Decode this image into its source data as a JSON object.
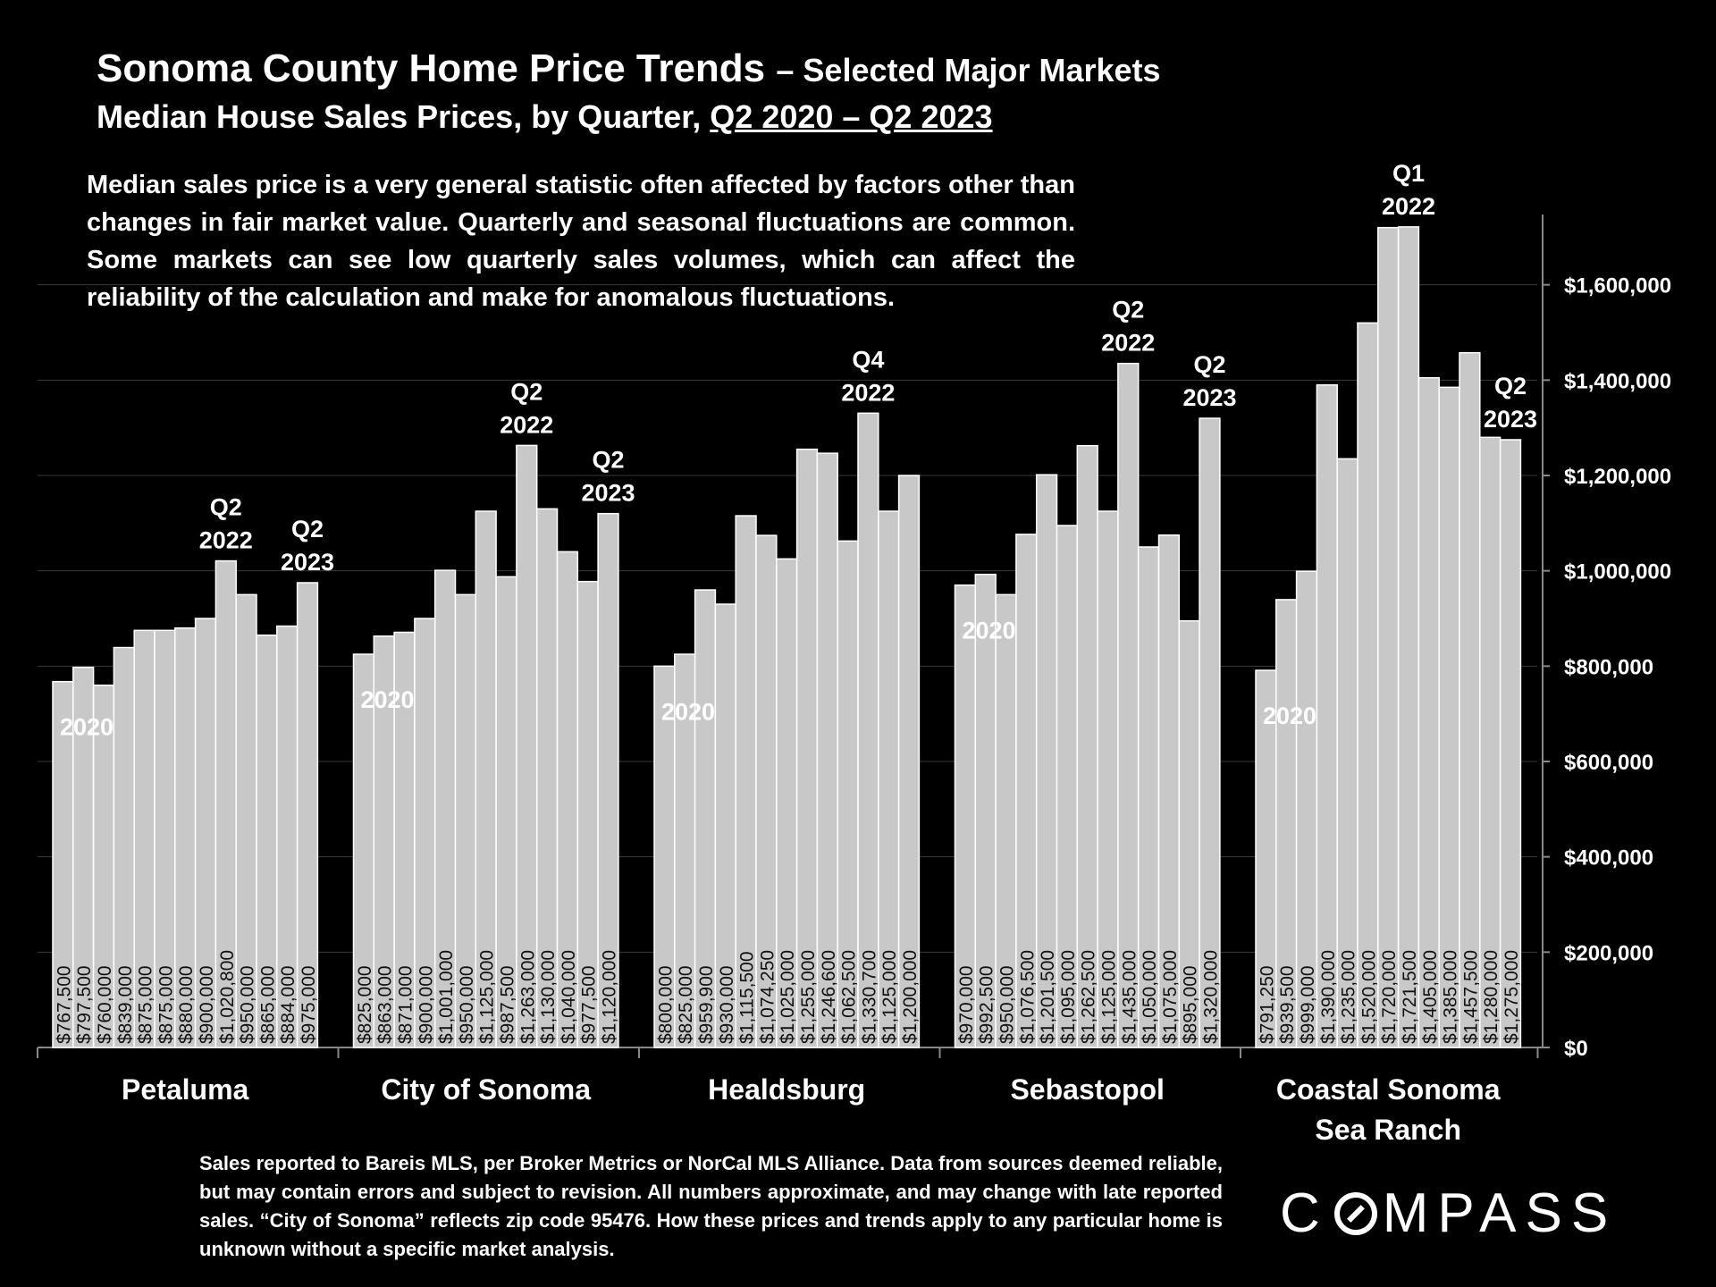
{
  "header": {
    "title_main": "Sonoma County Home Price Trends",
    "title_suffix": "– Selected Major Markets",
    "subtitle_prefix": "Median House Sales Prices, by Quarter, ",
    "subtitle_period": "Q2 2020 – Q2 2023"
  },
  "note": "Median sales price is a very general statistic often affected by factors other than changes in fair market value. Quarterly and seasonal fluctuations are common. Some markets can see low quarterly sales volumes, which can affect the reliability of the calculation and make for anomalous fluctuations.",
  "footer": "Sales reported to Bareis MLS, per Broker Metrics or NorCal MLS Alliance. Data from sources deemed reliable, but may contain errors and subject to revision. All numbers approximate, and may change with late reported sales. “City of Sonoma” reflects zip code 95476. How these prices and trends apply to any particular home is unknown without a specific market analysis.",
  "logo": {
    "pre": "C",
    "post": "MPASS"
  },
  "colors": {
    "background": "#000000",
    "bar": "#c8c8c8",
    "bar_outline": "#ffffff",
    "text": "#ffffff",
    "label_on_bar": "#111111",
    "gridline": "#3a3a3a"
  },
  "chart_data": {
    "type": "bar",
    "title": "Sonoma County Home Price Trends – Selected Major Markets",
    "subtitle": "Median House Sales Prices, by Quarter, Q2 2020 – Q2 2023",
    "xlabel": "",
    "ylabel": "",
    "ylim": [
      0,
      1740000
    ],
    "y_axis_position": "right",
    "y_ticks": [
      {
        "value": 0,
        "label": "$0"
      },
      {
        "value": 200000,
        "label": "$200,000"
      },
      {
        "value": 400000,
        "label": "$400,000"
      },
      {
        "value": 600000,
        "label": "$600,000"
      },
      {
        "value": 800000,
        "label": "$800,000"
      },
      {
        "value": 1000000,
        "label": "$1,000,000"
      },
      {
        "value": 1200000,
        "label": "$1,200,000"
      },
      {
        "value": 1400000,
        "label": "$1,400,000"
      },
      {
        "value": 1600000,
        "label": "$1,600,000"
      }
    ],
    "grid": true,
    "groups": [
      {
        "name": "Petaluma",
        "name_line2": "",
        "values": [
          767500,
          797500,
          760000,
          839000,
          875000,
          875000,
          880000,
          900000,
          1020800,
          950000,
          865000,
          884000,
          975000
        ],
        "labels": [
          "$767,500",
          "$797,500",
          "$760,000",
          "$839,000",
          "$875,000",
          "$875,000",
          "$880,000",
          "$900,000",
          "$1,020,800",
          "$950,000",
          "$865,000",
          "$884,000",
          "$975,000"
        ],
        "annotations": [
          {
            "index": 0,
            "lines": [
              "2020"
            ],
            "pos": "inside"
          },
          {
            "index": 8,
            "lines": [
              "Q2",
              "2022"
            ],
            "pos": "above"
          },
          {
            "index": 12,
            "lines": [
              "Q2",
              "2023"
            ],
            "pos": "above"
          }
        ]
      },
      {
        "name": "City of Sonoma",
        "name_line2": "",
        "values": [
          825000,
          863000,
          871000,
          900000,
          1001000,
          950000,
          1125000,
          987500,
          1263000,
          1130000,
          1040000,
          977500,
          1120000
        ],
        "labels": [
          "$825,000",
          "$863,000",
          "$871,000",
          "$900,000",
          "$1,001,000",
          "$950,000",
          "$1,125,000",
          "$987,500",
          "$1,263,000",
          "$1,130,000",
          "$1,040,000",
          "$977,500",
          "$1,120,000"
        ],
        "annotations": [
          {
            "index": 0,
            "lines": [
              "2020"
            ],
            "pos": "inside"
          },
          {
            "index": 8,
            "lines": [
              "Q2",
              "2022"
            ],
            "pos": "above"
          },
          {
            "index": 12,
            "lines": [
              "Q2",
              "2023"
            ],
            "pos": "above"
          }
        ]
      },
      {
        "name": "Healdsburg",
        "name_line2": "",
        "values": [
          800000,
          825000,
          959900,
          930000,
          1115500,
          1074250,
          1025000,
          1255000,
          1246600,
          1062500,
          1330700,
          1125000,
          1200000
        ],
        "labels": [
          "$800,000",
          "$825,000",
          "$959,900",
          "$930,000",
          "$1,115,500",
          "$1,074,250",
          "$1,025,000",
          "$1,255,000",
          "$1,246,600",
          "$1,062,500",
          "$1,330,700",
          "$1,125,000",
          "$1,200,000"
        ],
        "annotations": [
          {
            "index": 0,
            "lines": [
              "2020"
            ],
            "pos": "inside"
          },
          {
            "index": 10,
            "lines": [
              "Q4",
              "2022"
            ],
            "pos": "above"
          }
        ]
      },
      {
        "name": "Sebastopol",
        "name_line2": "",
        "values": [
          970000,
          992500,
          950000,
          1076500,
          1201500,
          1095000,
          1262500,
          1125000,
          1435000,
          1050000,
          1075000,
          895000,
          1320000
        ],
        "labels": [
          "$970,000",
          "$992,500",
          "$950,000",
          "$1,076,500",
          "$1,201,500",
          "$1,095,000",
          "$1,262,500",
          "$1,125,000",
          "$1,435,000",
          "$1,050,000",
          "$1,075,000",
          "$895,000",
          "$1,320,000"
        ],
        "annotations": [
          {
            "index": 0,
            "lines": [
              "2020"
            ],
            "pos": "inside"
          },
          {
            "index": 8,
            "lines": [
              "Q2",
              "2022"
            ],
            "pos": "above"
          },
          {
            "index": 12,
            "lines": [
              "Q2",
              "2023"
            ],
            "pos": "above"
          }
        ]
      },
      {
        "name": "Coastal Sonoma",
        "name_line2": "Sea Ranch",
        "values": [
          791250,
          939500,
          999000,
          1390000,
          1235000,
          1520000,
          1720000,
          1721500,
          1405000,
          1385000,
          1457500,
          1280000,
          1275000
        ],
        "labels": [
          "$791,250",
          "$939,500",
          "$999,000",
          "$1,390,000",
          "$1,235,000",
          "$1,520,000",
          "$1,720,000",
          "$1,721,500",
          "$1,405,000",
          "$1,385,000",
          "$1,457,500",
          "$1,280,000",
          "$1,275,000"
        ],
        "annotations": [
          {
            "index": 0,
            "lines": [
              "2020"
            ],
            "pos": "inside"
          },
          {
            "index": 7,
            "lines": [
              "Q1",
              "2022"
            ],
            "pos": "above"
          },
          {
            "index": 12,
            "lines": [
              "Q2",
              "2023"
            ],
            "pos": "above"
          }
        ]
      }
    ]
  }
}
